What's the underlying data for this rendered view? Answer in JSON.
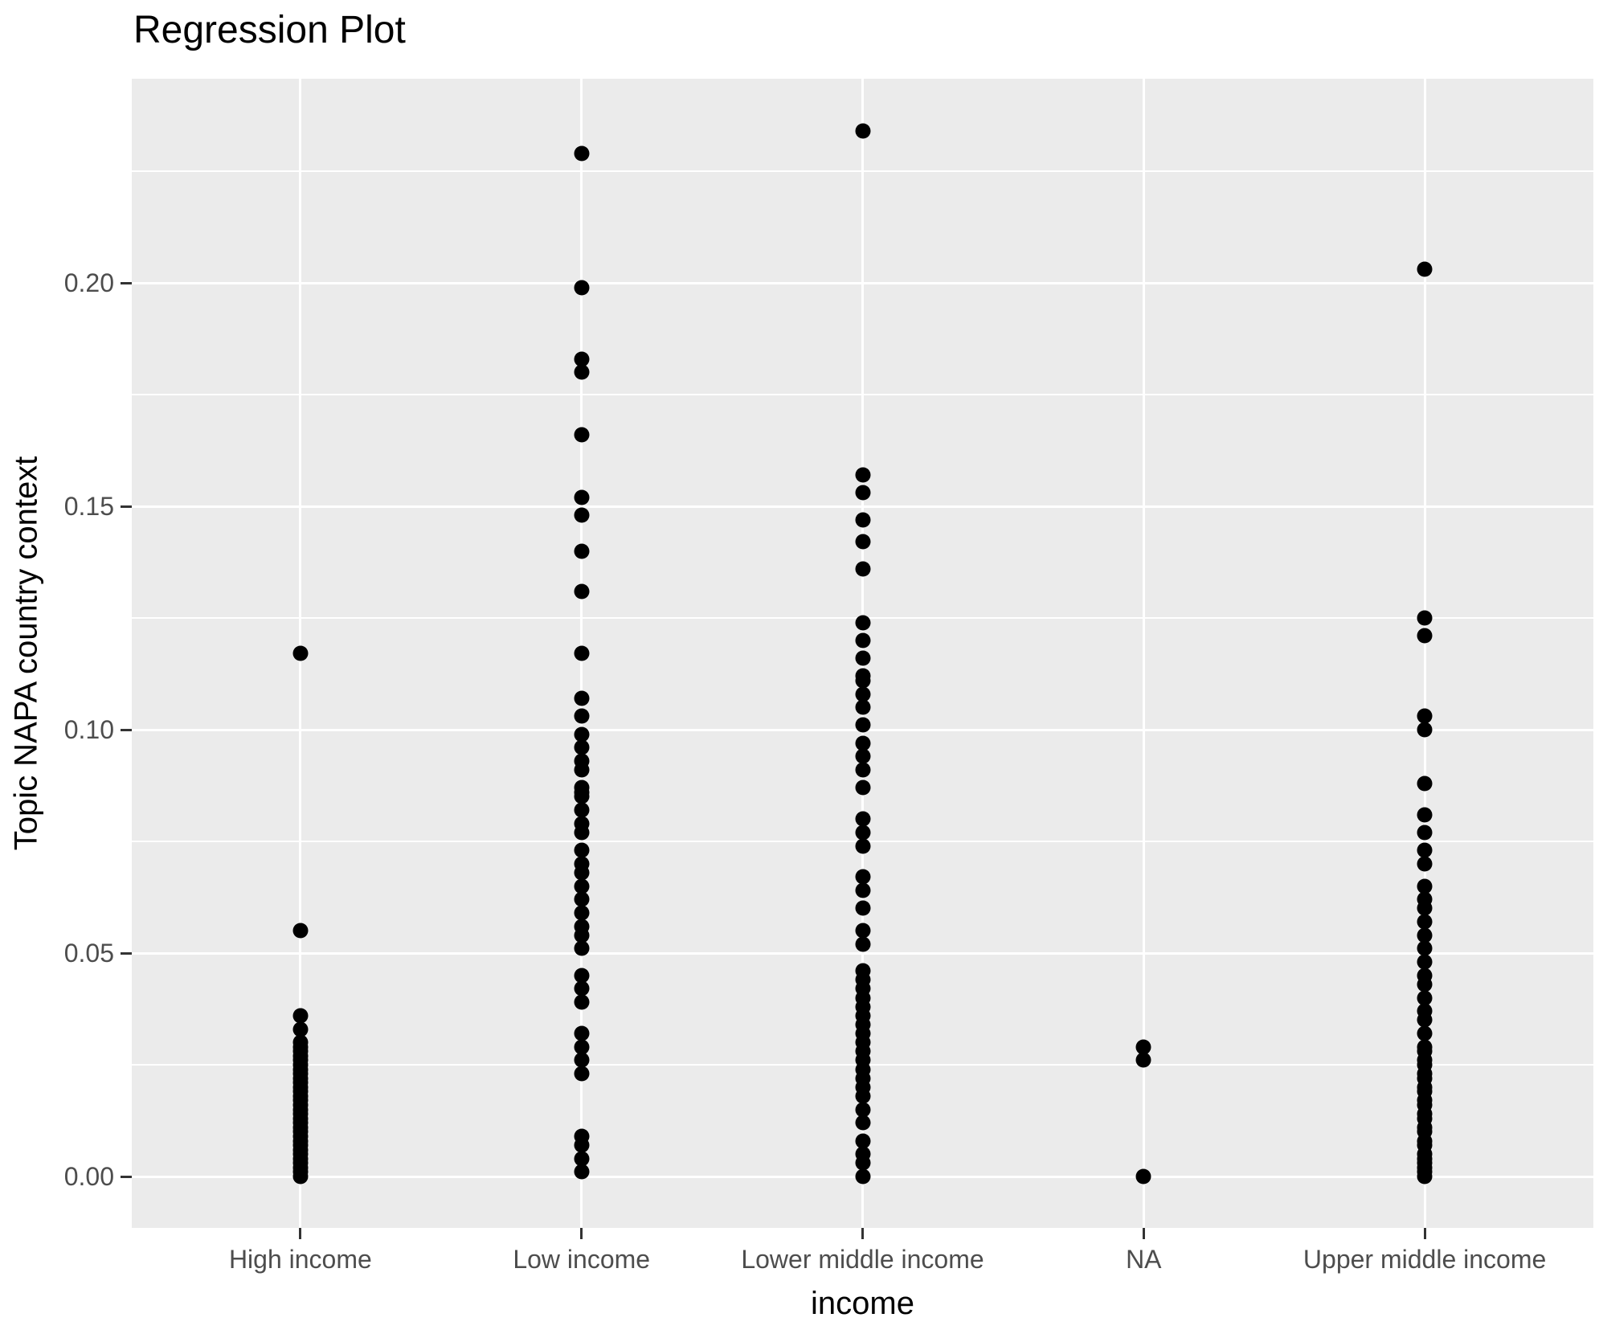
{
  "title": "Regression Plot",
  "colors": {
    "page_bg": "#FFFFFF",
    "panel_bg": "#EBEBEB",
    "gridline": "#FFFFFF",
    "point": "#000000",
    "axis_text": "#4D4D4D",
    "tick_mark": "#333333",
    "title_text": "#000000"
  },
  "chart_data": {
    "type": "scatter",
    "title": "Regression Plot",
    "xlabel": "income",
    "ylabel": "Topic NAPA country context",
    "legend": "none",
    "grid": "white major+minor horizontal lines, white major vertical lines on grey panel",
    "categories": [
      "High income",
      "Low income",
      "Lower middle income",
      "NA",
      "Upper middle income"
    ],
    "y_axis": {
      "tick_values": [
        0.0,
        0.05,
        0.1,
        0.15,
        0.2
      ],
      "tick_labels": [
        "0.00",
        "0.05",
        "0.10",
        "0.15",
        "0.20"
      ],
      "minor_tick_values": [
        0.025,
        0.075,
        0.125,
        0.175,
        0.225
      ],
      "range_shown": [
        -0.0115,
        0.2455
      ]
    },
    "series": [
      {
        "name": "High income",
        "values": [
          0.117,
          0.055,
          0.036,
          0.033,
          0.03,
          0.029,
          0.028,
          0.027,
          0.026,
          0.025,
          0.024,
          0.023,
          0.022,
          0.021,
          0.02,
          0.019,
          0.018,
          0.017,
          0.016,
          0.015,
          0.014,
          0.013,
          0.012,
          0.011,
          0.01,
          0.009,
          0.008,
          0.007,
          0.006,
          0.005,
          0.004,
          0.003,
          0.002,
          0.001,
          0.0
        ]
      },
      {
        "name": "Low income",
        "values": [
          0.229,
          0.199,
          0.183,
          0.18,
          0.166,
          0.152,
          0.148,
          0.14,
          0.131,
          0.117,
          0.107,
          0.103,
          0.099,
          0.096,
          0.093,
          0.091,
          0.087,
          0.086,
          0.085,
          0.082,
          0.079,
          0.077,
          0.073,
          0.07,
          0.068,
          0.065,
          0.062,
          0.059,
          0.056,
          0.054,
          0.051,
          0.045,
          0.042,
          0.039,
          0.032,
          0.029,
          0.026,
          0.023,
          0.009,
          0.007,
          0.004,
          0.001
        ]
      },
      {
        "name": "Lower middle income",
        "values": [
          0.234,
          0.157,
          0.153,
          0.147,
          0.142,
          0.136,
          0.124,
          0.12,
          0.116,
          0.112,
          0.111,
          0.108,
          0.105,
          0.101,
          0.097,
          0.094,
          0.091,
          0.087,
          0.08,
          0.077,
          0.074,
          0.067,
          0.064,
          0.06,
          0.055,
          0.052,
          0.046,
          0.044,
          0.042,
          0.04,
          0.038,
          0.036,
          0.034,
          0.032,
          0.03,
          0.028,
          0.026,
          0.024,
          0.022,
          0.02,
          0.018,
          0.015,
          0.012,
          0.008,
          0.005,
          0.003,
          0.0
        ]
      },
      {
        "name": "NA",
        "values": [
          0.029,
          0.026,
          0.0
        ]
      },
      {
        "name": "Upper middle income",
        "values": [
          0.203,
          0.125,
          0.121,
          0.103,
          0.1,
          0.088,
          0.081,
          0.077,
          0.073,
          0.07,
          0.065,
          0.062,
          0.06,
          0.057,
          0.054,
          0.051,
          0.048,
          0.045,
          0.043,
          0.04,
          0.037,
          0.035,
          0.032,
          0.029,
          0.028,
          0.026,
          0.025,
          0.023,
          0.022,
          0.02,
          0.019,
          0.017,
          0.016,
          0.014,
          0.013,
          0.011,
          0.01,
          0.008,
          0.007,
          0.005,
          0.004,
          0.003,
          0.002,
          0.001,
          0.0
        ]
      }
    ]
  }
}
